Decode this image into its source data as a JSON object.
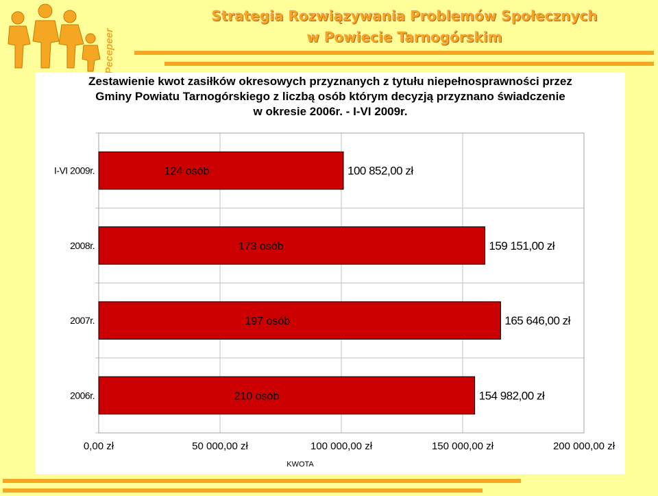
{
  "logo": {
    "text": "Pecepeer",
    "colors": {
      "figures": "#F5A623",
      "text": "#F5A623"
    }
  },
  "header": {
    "title_line1": "Strategia Rozwiązywania Problemów Społecznych",
    "title_line2": "w Powiecie Tarnogórskim"
  },
  "colors": {
    "background": "#FFFF99",
    "accent": "#F5A623",
    "bar": "#CC0000",
    "grid": "#C0C0C0"
  },
  "chart_data": {
    "type": "bar",
    "orientation": "horizontal",
    "title_lines": [
      "Zestawienie kwot zasiłków okresowych przyznanych z tytułu niepełnosprawności przez",
      "Gminy Powiatu Tarnogórskiego z liczbą osób którym decyzją przyznano świadczenie",
      "w okresie 2006r. - I-VI 2009r."
    ],
    "categories": [
      "I-VI 2009r.",
      "2008r.",
      "2007r.",
      "2006r."
    ],
    "values": [
      100852,
      159151,
      165646,
      154982
    ],
    "value_labels": [
      "100 852,00 zł",
      "159 151,00 zł",
      "165 646,00 zł",
      "154 982,00 zł"
    ],
    "bar_annotations": [
      "124 osób",
      "173 osób",
      "197 osób",
      "210 osób"
    ],
    "xlabel": "KWOTA",
    "ylabel": "",
    "xlim": [
      0,
      200000
    ],
    "x_ticks": [
      0,
      50000,
      100000,
      150000,
      200000
    ],
    "x_tick_labels": [
      "0,00 zł",
      "50 000,00 zł",
      "100 000,00 zł",
      "150 000,00 zł",
      "200 000,00 zł"
    ],
    "grid": true,
    "bar_color": "#CC0000"
  }
}
